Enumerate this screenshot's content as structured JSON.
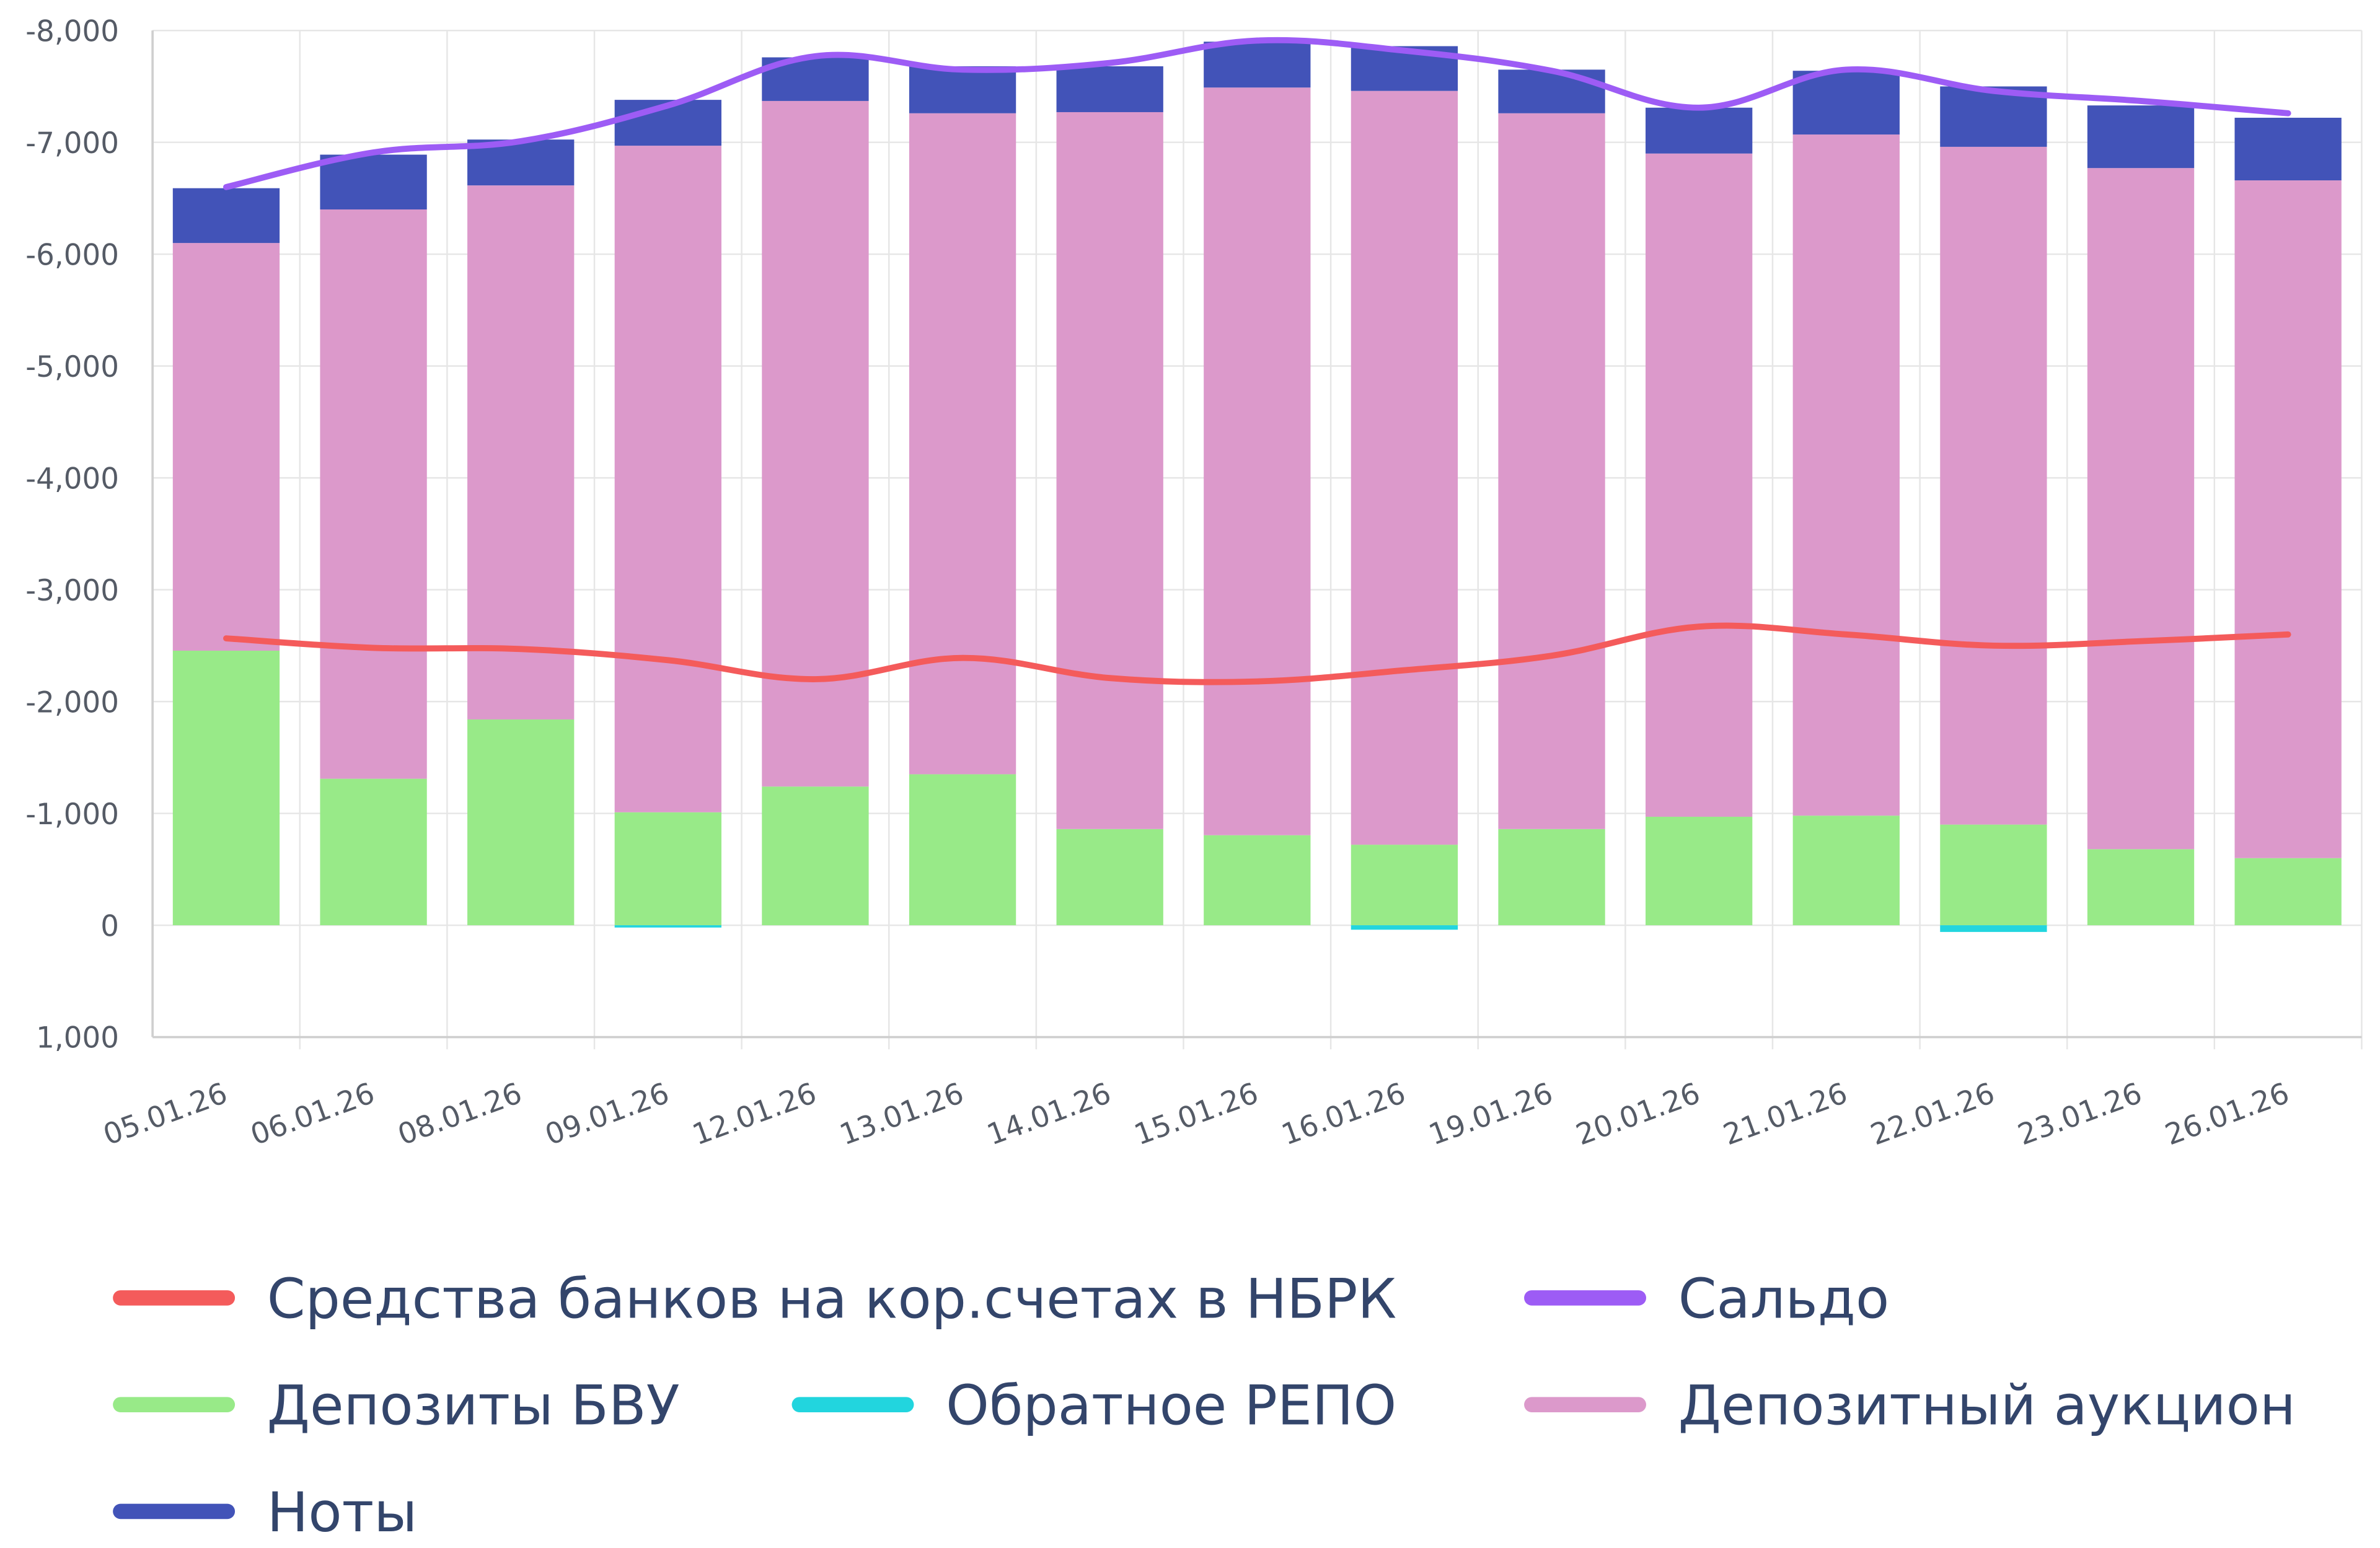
{
  "chart_data": {
    "type": "bar",
    "stacked": true,
    "y_inverted": true,
    "ylim": [
      -8000,
      1000
    ],
    "yticks": [
      -8000,
      -7000,
      -6000,
      -5000,
      -4000,
      -3000,
      -2000,
      -1000,
      0,
      1000
    ],
    "ytick_labels": [
      "-8,000",
      "-7,000",
      "-6,000",
      "-5,000",
      "-4,000",
      "-3,000",
      "-2,000",
      "-1,000",
      "0",
      "1,000"
    ],
    "grid": true,
    "legend_position": "bottom",
    "categories": [
      "05.01.26",
      "06.01.26",
      "08.01.26",
      "09.01.26",
      "12.01.26",
      "13.01.26",
      "14.01.26",
      "15.01.26",
      "16.01.26",
      "19.01.26",
      "20.01.26",
      "21.01.26",
      "22.01.26",
      "23.01.26",
      "26.01.26"
    ],
    "series": [
      {
        "name": "Средства банков на кор.счетах в НБРК",
        "type": "line",
        "color": "#f45b5b",
        "values": [
          -2565,
          -2480,
          -2470,
          -2370,
          -2200,
          -2390,
          -2210,
          -2180,
          -2280,
          -2410,
          -2670,
          -2600,
          -2500,
          -2540,
          -2600
        ]
      },
      {
        "name": "Сальдо",
        "type": "line",
        "color": "#9d5cf5",
        "values": [
          -6600,
          -6910,
          -7010,
          -7330,
          -7770,
          -7650,
          -7710,
          -7910,
          -7820,
          -7640,
          -7310,
          -7650,
          -7460,
          -7370,
          -7260
        ]
      },
      {
        "name": "Депозиты БВУ",
        "type": "bar",
        "color": "#98ea88",
        "values": [
          -2455,
          -1310,
          -1840,
          -1010,
          -1240,
          -1350,
          -860,
          -805,
          -720,
          -860,
          -970,
          -980,
          -900,
          -680,
          -600
        ]
      },
      {
        "name": "Обратное РЕПО",
        "type": "bar",
        "color": "#22d5de",
        "values": [
          0,
          0,
          0,
          15,
          0,
          0,
          0,
          0,
          40,
          0,
          0,
          0,
          60,
          0,
          0
        ]
      },
      {
        "name": "Депозитный аукцион",
        "type": "bar",
        "color": "#dc99cb",
        "values": [
          -3645,
          -5090,
          -4775,
          -5960,
          -6130,
          -5910,
          -6410,
          -6685,
          -6740,
          -6400,
          -5930,
          -6090,
          -6060,
          -6090,
          -6060
        ]
      },
      {
        "name": "Ноты",
        "type": "bar",
        "color": "#4253b8",
        "values": [
          -490,
          -490,
          -410,
          -410,
          -390,
          -420,
          -410,
          -410,
          -400,
          -390,
          -410,
          -570,
          -540,
          -560,
          -560
        ]
      }
    ]
  }
}
